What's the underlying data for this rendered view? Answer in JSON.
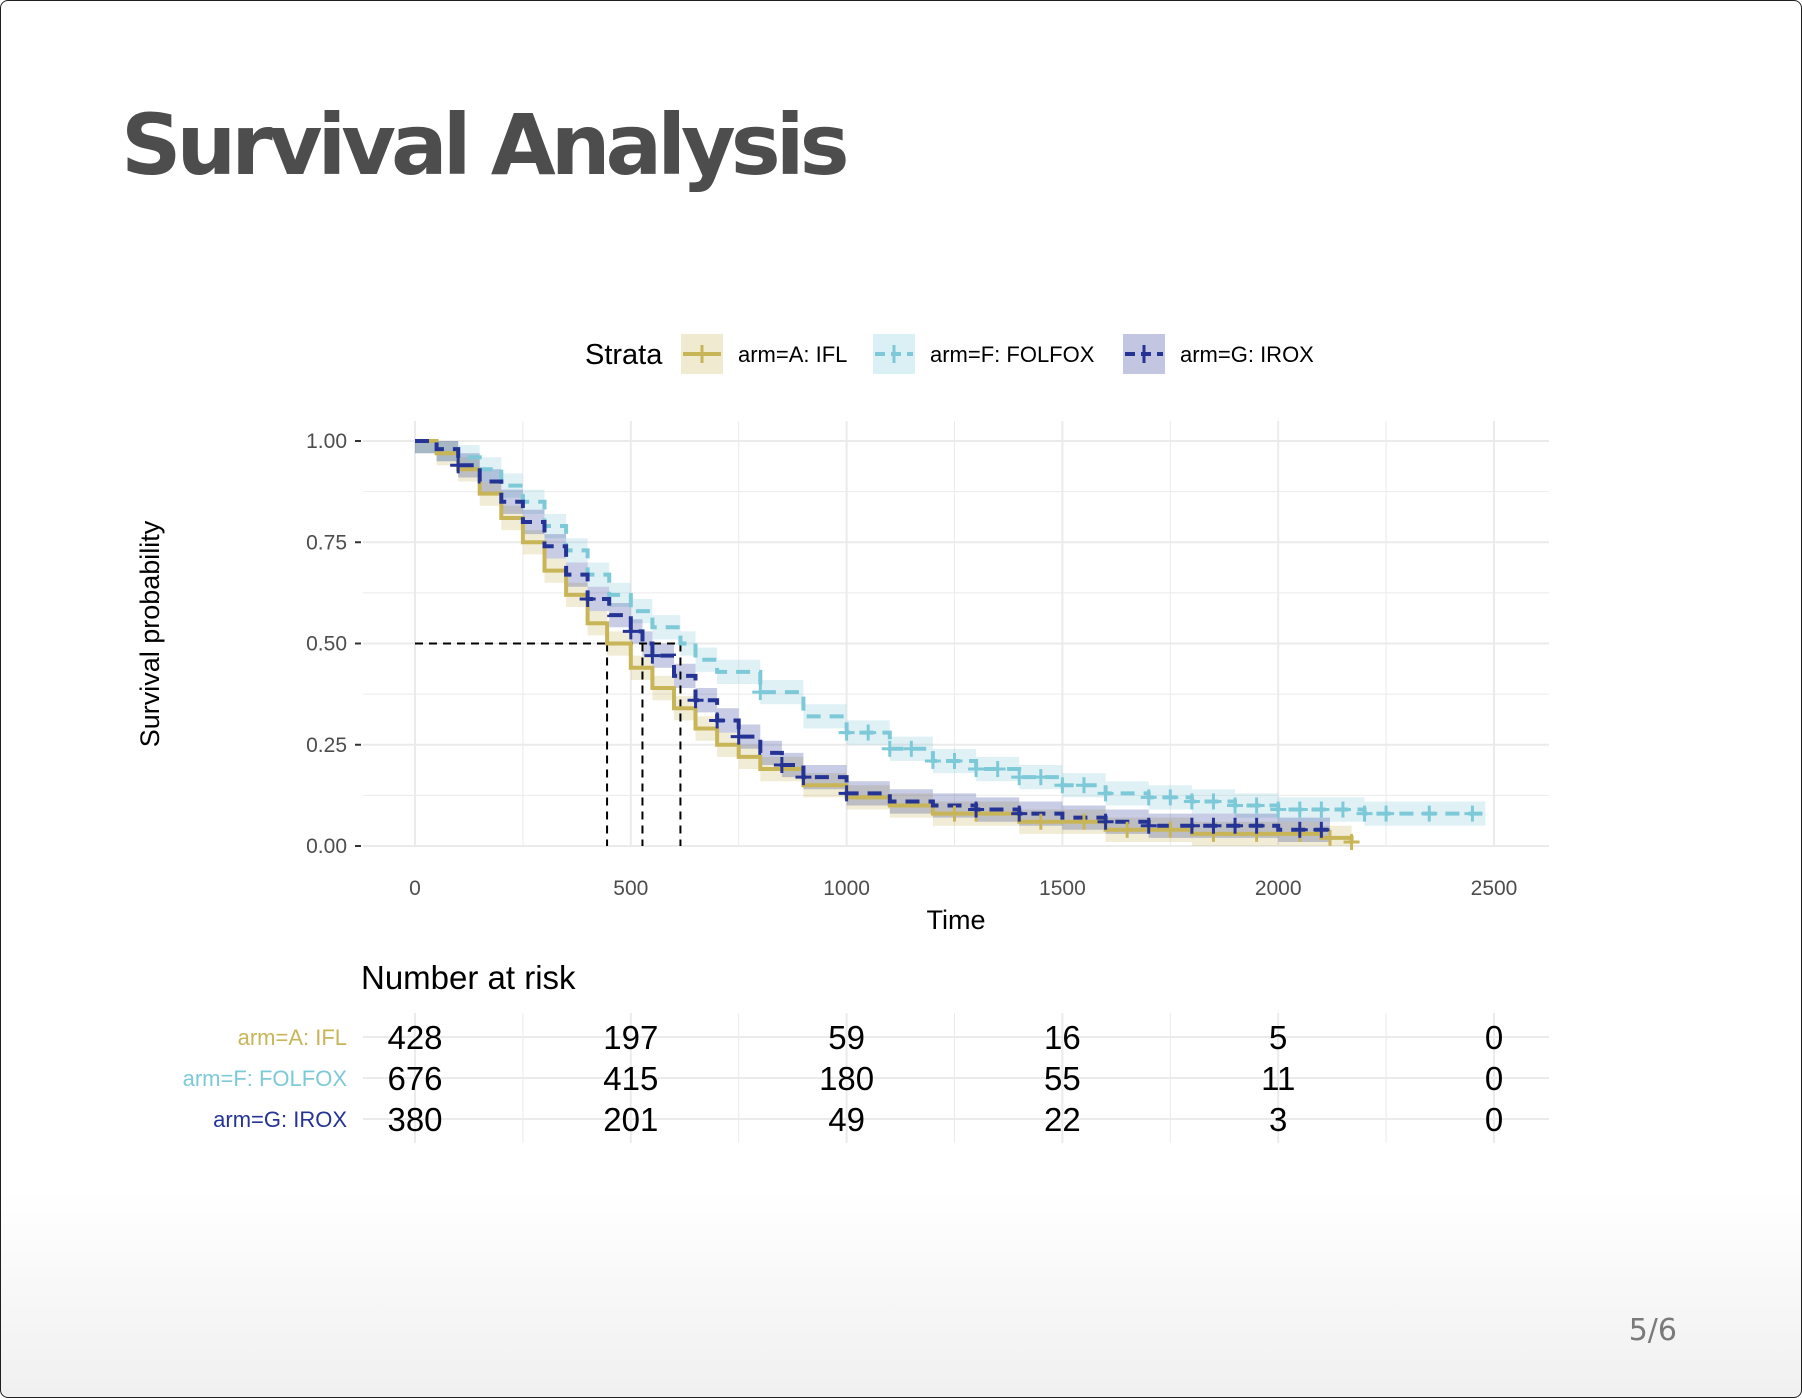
{
  "slide": {
    "title": "Survival Analysis",
    "page_number": "5/6"
  },
  "chart_data": {
    "type": "line",
    "subtype": "kaplan-meier",
    "xlabel": "Time",
    "ylabel": "Survival probability",
    "xlim": [
      0,
      2500
    ],
    "ylim": [
      0,
      1
    ],
    "x_ticks": [
      0,
      500,
      1000,
      1500,
      2000,
      2500
    ],
    "y_ticks": [
      "0.00",
      "0.25",
      "0.50",
      "0.75",
      "1.00"
    ],
    "grid": true,
    "legend": {
      "title": "Strata",
      "position": "top"
    },
    "median_survival": [
      445,
      527,
      615
    ],
    "series": [
      {
        "name": "arm=A: IFL",
        "color": "#c8b558",
        "dash": "solid",
        "x": [
          0,
          50,
          100,
          150,
          200,
          250,
          300,
          350,
          400,
          445,
          500,
          550,
          600,
          650,
          700,
          750,
          800,
          900,
          1000,
          1100,
          1200,
          1400,
          1600,
          1800,
          2000,
          2100,
          2170
        ],
        "y": [
          1,
          0.97,
          0.93,
          0.87,
          0.81,
          0.75,
          0.68,
          0.62,
          0.55,
          0.5,
          0.44,
          0.39,
          0.34,
          0.29,
          0.25,
          0.22,
          0.19,
          0.15,
          0.12,
          0.1,
          0.08,
          0.06,
          0.04,
          0.03,
          0.03,
          0.02,
          0.01
        ],
        "censor_x": [
          1250,
          1300,
          1450,
          1550,
          1650,
          1750,
          1850,
          1950,
          2050,
          2120,
          2170
        ]
      },
      {
        "name": "arm=F: FOLFOX",
        "color": "#7ec9d8",
        "dash": "dashed",
        "x": [
          0,
          50,
          100,
          150,
          200,
          250,
          300,
          350,
          400,
          450,
          500,
          550,
          615,
          650,
          700,
          800,
          900,
          1000,
          1100,
          1200,
          1300,
          1400,
          1500,
          1600,
          1700,
          1800,
          1900,
          2000,
          2200,
          2480
        ],
        "y": [
          1,
          0.98,
          0.96,
          0.93,
          0.89,
          0.85,
          0.79,
          0.73,
          0.67,
          0.62,
          0.58,
          0.54,
          0.5,
          0.46,
          0.43,
          0.38,
          0.32,
          0.28,
          0.24,
          0.21,
          0.19,
          0.17,
          0.15,
          0.13,
          0.12,
          0.11,
          0.1,
          0.09,
          0.08,
          0.08
        ],
        "censor_x": [
          800,
          1000,
          1050,
          1100,
          1150,
          1200,
          1250,
          1300,
          1350,
          1400,
          1450,
          1500,
          1550,
          1600,
          1700,
          1750,
          1800,
          1850,
          1900,
          1950,
          2000,
          2050,
          2100,
          2150,
          2200,
          2250,
          2350,
          2450
        ]
      },
      {
        "name": "arm=G: IROX",
        "color": "#253494",
        "dash": "dashed",
        "x": [
          0,
          50,
          100,
          150,
          200,
          250,
          300,
          350,
          400,
          450,
          500,
          527,
          550,
          600,
          650,
          700,
          750,
          800,
          850,
          900,
          1000,
          1100,
          1200,
          1300,
          1400,
          1500,
          1600,
          1700,
          1800,
          1900,
          2000,
          2120
        ],
        "y": [
          1,
          0.98,
          0.94,
          0.9,
          0.85,
          0.8,
          0.74,
          0.67,
          0.61,
          0.57,
          0.53,
          0.5,
          0.47,
          0.42,
          0.36,
          0.31,
          0.27,
          0.23,
          0.2,
          0.17,
          0.13,
          0.11,
          0.1,
          0.09,
          0.08,
          0.07,
          0.06,
          0.05,
          0.05,
          0.05,
          0.04,
          0.04
        ],
        "censor_x": [
          100,
          400,
          500,
          550,
          650,
          700,
          750,
          850,
          900,
          1000,
          1300,
          1400,
          1600,
          1700,
          1800,
          1850,
          1900,
          1950,
          2050,
          2100
        ]
      }
    ]
  },
  "risk_table": {
    "title": "Number at risk",
    "times": [
      0,
      500,
      1000,
      1500,
      2000,
      2500
    ],
    "rows": [
      {
        "label": "arm=A: IFL",
        "color": "#c8b558",
        "values": [
          "428",
          "197",
          "59",
          "16",
          "5",
          "0"
        ]
      },
      {
        "label": "arm=F: FOLFOX",
        "color": "#7ec9d8",
        "values": [
          "676",
          "415",
          "180",
          "55",
          "11",
          "0"
        ]
      },
      {
        "label": "arm=G: IROX",
        "color": "#253494",
        "values": [
          "380",
          "201",
          "49",
          "22",
          "3",
          "0"
        ]
      }
    ]
  }
}
